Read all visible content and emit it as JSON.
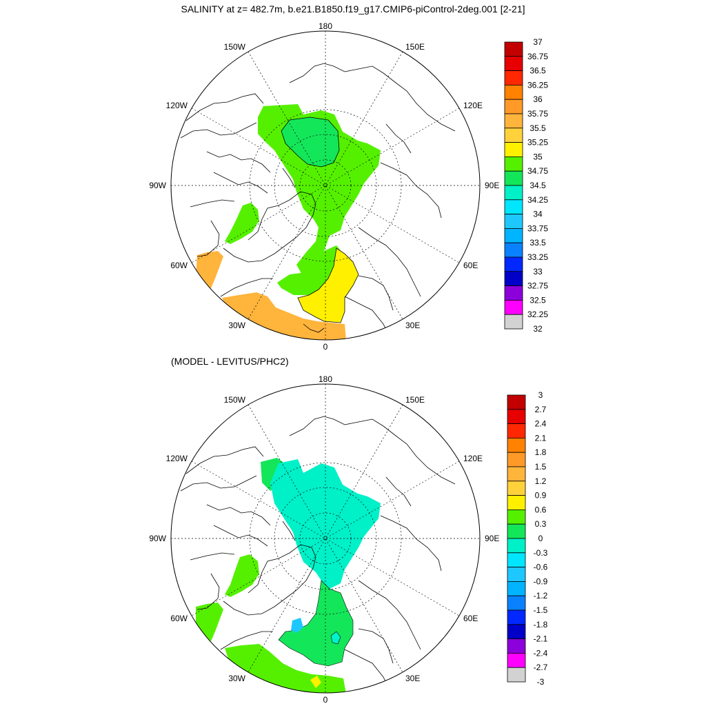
{
  "title": "SALINITY at z= 482.7m, b.e21.B1850.f19_g17.CMIP6-piControl-2deg.001 [2-21]",
  "panels": [
    {
      "name": "salinity",
      "subtitle": "",
      "lon_labels": {
        "lon180": "180",
        "lon150w": "150W",
        "lon150e": "150E",
        "lon120w": "120W",
        "lon120e": "120E",
        "lon90w": "90W",
        "lon90e": "90E",
        "lon60w": "60W",
        "lon60e": "60E",
        "lon30w": "30W",
        "lon30e": "30E",
        "lon0": "0"
      },
      "colorbar": {
        "labels": [
          "37",
          "36.75",
          "36.5",
          "36.25",
          "36",
          "35.75",
          "35.5",
          "35.25",
          "35",
          "34.75",
          "34.5",
          "34.25",
          "34",
          "33.75",
          "33.5",
          "33.25",
          "33",
          "32.75",
          "32.5",
          "32.25",
          "32"
        ],
        "colors": [
          "#c20000",
          "#e60000",
          "#ff2800",
          "#ff8200",
          "#ff9a28",
          "#ffb43c",
          "#ffd23c",
          "#fff000",
          "#55f000",
          "#14e65a",
          "#00f0c8",
          "#00e6ff",
          "#1ec8ff",
          "#00b4ff",
          "#0a82ff",
          "#0028ff",
          "#0000c8",
          "#8c00dc",
          "#ff00ff",
          "#d2d2d2",
          "#707070"
        ]
      }
    },
    {
      "name": "difference",
      "subtitle": "(MODEL - LEVITUS/PHC2)",
      "lon_labels": {
        "lon180": "180",
        "lon150w": "150W",
        "lon150e": "150E",
        "lon120w": "120W",
        "lon120e": "120E",
        "lon90w": "90W",
        "lon90e": "90E",
        "lon60w": "60W",
        "lon60e": "60E",
        "lon30w": "30W",
        "lon30e": "30E",
        "lon0": "0"
      },
      "colorbar": {
        "labels": [
          "3",
          "2.7",
          "2.4",
          "2.1",
          "1.8",
          "1.5",
          "1.2",
          "0.9",
          "0.6",
          "0.3",
          "0",
          "-0.3",
          "-0.6",
          "-0.9",
          "-1.2",
          "-1.5",
          "-1.8",
          "-2.1",
          "-2.4",
          "-2.7",
          "-3"
        ],
        "colors": [
          "#c20000",
          "#e60000",
          "#ff2800",
          "#ff8200",
          "#ff9a28",
          "#ffb43c",
          "#ffd23c",
          "#fff000",
          "#55f000",
          "#14e65a",
          "#00f0c8",
          "#00e6ff",
          "#1ec8ff",
          "#00b4ff",
          "#0a82ff",
          "#0028ff",
          "#0000c8",
          "#8c00dc",
          "#ff00ff",
          "#d2d2d2",
          "#707070"
        ]
      }
    }
  ]
}
